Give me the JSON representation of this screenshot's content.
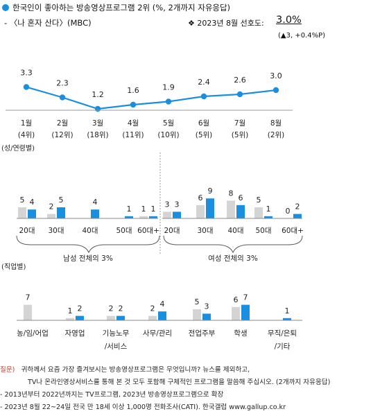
{
  "header": {
    "title": "한국인이 좋아하는 방송영상프로그램 2위 (%, 2개까지 자유응답)",
    "show": "- 〈나 혼자 산다〉(MBC)",
    "pref_label": "❖ 2023년 8월 선호도:",
    "pref_value": "3.0%",
    "pref_change": "(▲3, +0.4%P)"
  },
  "colors": {
    "line": "#1a8fe0",
    "blue_bar": "#1a8fe0",
    "gray_bar": "#d4d4d4"
  },
  "chart_data": [
    {
      "type": "line",
      "categories": [
        "1월",
        "2월",
        "3월",
        "4월",
        "5월",
        "6월",
        "7월",
        "8월"
      ],
      "ranks": [
        "(4위)",
        "(12위)",
        "(18위)",
        "(11위)",
        "(10위)",
        "(5위)",
        "(5위)",
        "(2위)"
      ],
      "values": [
        3.3,
        2.3,
        1.2,
        1.6,
        1.9,
        2.4,
        2.6,
        3.0
      ],
      "value_labels": [
        "3.3",
        "2.3",
        "1.2",
        "1.6",
        "1.9",
        "2.4",
        "2.6",
        "3.0"
      ]
    },
    {
      "type": "bar",
      "section_label": "(성/연령별)",
      "groups": [
        {
          "label": "남성 전체의 3%",
          "categories": [
            "20대",
            "30대",
            "40대",
            "50대",
            "60대+"
          ],
          "series": [
            {
              "values": [
                5,
                2,
                0,
                0,
                1
              ],
              "labels": [
                "5",
                "2",
                "",
                "",
                "1"
              ]
            },
            {
              "values": [
                4,
                5,
                4,
                1,
                1
              ],
              "labels": [
                "4",
                "5",
                "4",
                "1",
                "1"
              ]
            }
          ]
        },
        {
          "label": "여성 전체의 3%",
          "categories": [
            "20대",
            "30대",
            "40대",
            "50대",
            "60대+"
          ],
          "series": [
            {
              "values": [
                3,
                6,
                8,
                5,
                0
              ],
              "labels": [
                "3",
                "6",
                "8",
                "5",
                "0"
              ]
            },
            {
              "values": [
                3,
                9,
                6,
                1,
                2
              ],
              "labels": [
                "3",
                "9",
                "6",
                "1",
                "2"
              ]
            }
          ]
        }
      ]
    },
    {
      "type": "bar",
      "section_label": "(직업별)",
      "categories": [
        "농/임/어업",
        "자영업",
        "기능노무/서비스",
        "사무/관리",
        "전업주부",
        "학생",
        "무직/은퇴/기타"
      ],
      "category_lines": [
        [
          "농/임/어업"
        ],
        [
          "자영업"
        ],
        [
          "기능노무",
          "/서비스"
        ],
        [
          "사무/관리"
        ],
        [
          "전업주부"
        ],
        [
          "학생"
        ],
        [
          "무직/은퇴",
          "/기타"
        ]
      ],
      "series": [
        {
          "values": [
            7,
            1,
            2,
            2,
            5,
            6,
            0
          ],
          "labels": [
            "7",
            "1",
            "2",
            "2",
            "5",
            "6",
            ""
          ]
        },
        {
          "values": [
            0,
            2,
            2,
            4,
            3,
            7,
            1
          ],
          "labels": [
            "",
            "2",
            "2",
            "4",
            "3",
            "7",
            "1"
          ]
        }
      ]
    }
  ],
  "footer": {
    "question_label": "질문)",
    "question_line1": "귀하께서 요즘 가장 즐겨보시는 방송영상프로그램은 무엇입니까? 뉴스를 제외하고,",
    "question_line2": "TV나 온라인영상서비스를 통해 본 것 모두 포함해 구체적인 프로그램을 말씀해 주십시오. (2개까지 자유응답)",
    "note1": "- 2013년부터 2022년까지는 TV프로그램, 2023년 방송영상프로그램으로 확장",
    "note2": "- 2023년 8월 22~24일 전국 만 18세 이상 1,000명 전화조사(CATI). 한국갤럽 www.gallup.co.kr"
  }
}
